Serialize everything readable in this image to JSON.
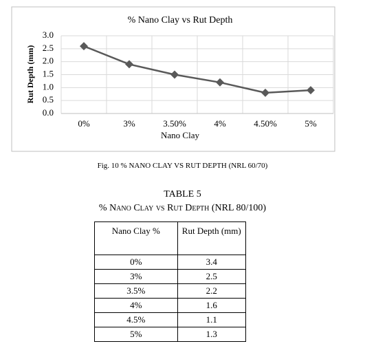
{
  "chart_data": {
    "type": "line",
    "title": "% Nano Clay vs Rut Depth",
    "x_label": "Nano Clay",
    "y_label": "Rut Depth (mm)",
    "categories": [
      "0%",
      "3%",
      "3.50%",
      "4%",
      "4.50%",
      "5%"
    ],
    "values": [
      2.6,
      1.9,
      1.5,
      1.2,
      0.8,
      0.9
    ],
    "color": "#595959",
    "ylim": [
      0,
      3
    ],
    "yticks": [
      {
        "value": 0,
        "label": "0.0"
      },
      0.5,
      {
        "value": 1,
        "label": "1.0"
      },
      1.5,
      {
        "value": 2,
        "label": "2.0"
      },
      2.5,
      {
        "value": 3,
        "label": "3.0"
      }
    ],
    "grid": true
  },
  "caption": "Fig. 10 % NANO CLAY VS RUT DEPTH (NRL 60/70)",
  "table": {
    "title": "TABLE 5",
    "subtitle": "% Nano Clay vs Rut Depth (NRL 80/100)",
    "header": [
      "Nano Clay %",
      "Rut Depth (mm)"
    ],
    "rows": [
      [
        "0%",
        3.4
      ],
      [
        "3%",
        2.5
      ],
      [
        "3.5%",
        2.2
      ],
      [
        "4%",
        1.6
      ],
      [
        "4.5%",
        1.1
      ],
      [
        "5%",
        1.3
      ]
    ]
  }
}
